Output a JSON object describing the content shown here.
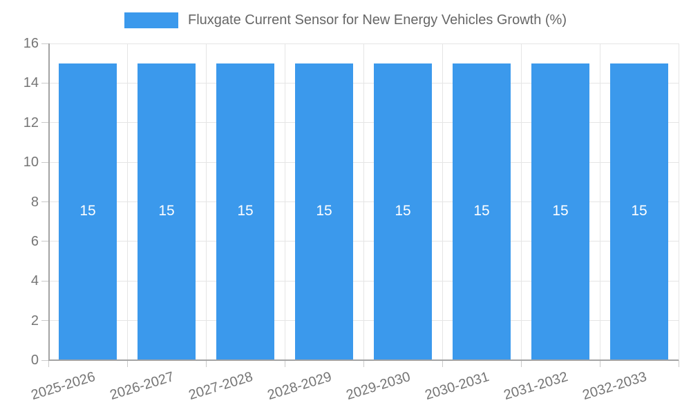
{
  "chart_data": {
    "type": "bar",
    "title": "Fluxgate Current Sensor for New Energy Vehicles Growth (%)",
    "categories": [
      "2025-2026",
      "2026-2027",
      "2027-2028",
      "2028-2029",
      "2029-2030",
      "2030-2031",
      "2031-2032",
      "2032-2033"
    ],
    "values": [
      15,
      15,
      15,
      15,
      15,
      15,
      15,
      15
    ],
    "bar_value_labels": [
      "15",
      "15",
      "15",
      "15",
      "15",
      "15",
      "15",
      "15"
    ],
    "ylim": [
      0,
      16
    ],
    "yticks": [
      0,
      2,
      4,
      6,
      8,
      10,
      12,
      14,
      16
    ],
    "legend_position": "top",
    "grid": true,
    "colors": {
      "bar": "#3b99ec",
      "bar_label": "#ffffff",
      "grid": "#e5e5e5",
      "axis": "#a3a3a3",
      "tick_text": "#757575",
      "legend_text": "#666666",
      "background": "#ffffff"
    }
  }
}
